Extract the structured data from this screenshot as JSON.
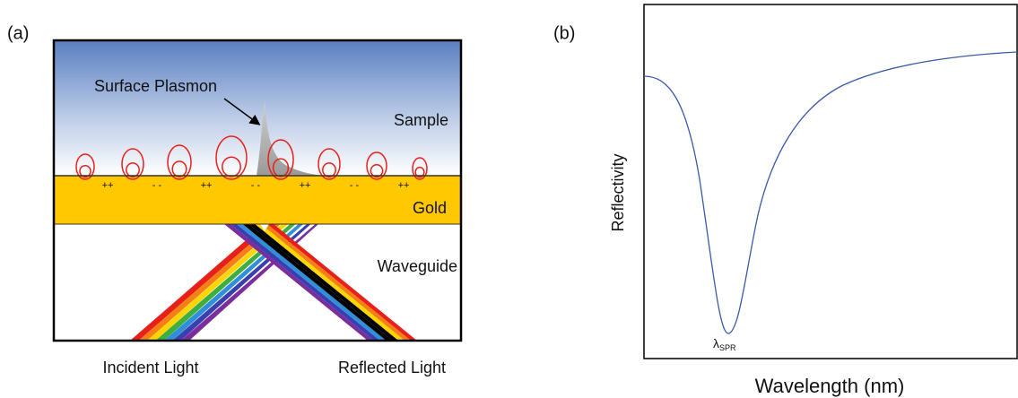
{
  "panel_a": {
    "label": "(a)",
    "surface_plasmon": "Surface Plasmon",
    "sample": "Sample",
    "gold": "Gold",
    "waveguide": "Waveguide",
    "charges": [
      "++",
      "- -",
      "++",
      "- -",
      "++",
      "- -",
      "++"
    ],
    "incident": "Incident Light",
    "reflected": "Reflected Light"
  },
  "panel_b": {
    "label": "(b)",
    "y_label": "Reflectivity",
    "x_label": "Wavelength (nm)",
    "minimum": {
      "symbol": "λ",
      "subscript": "SPR"
    }
  }
}
